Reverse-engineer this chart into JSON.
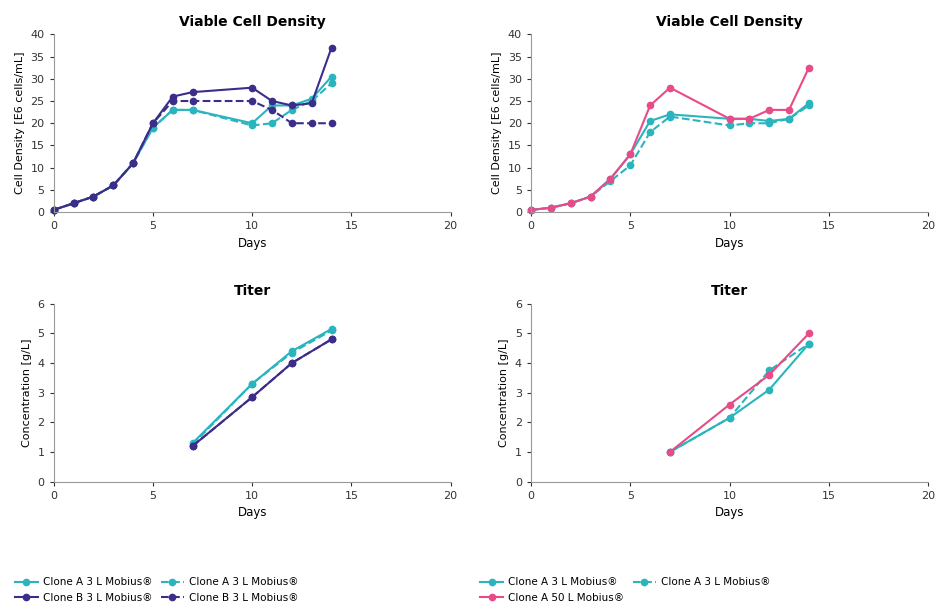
{
  "top_left": {
    "title": "Viable Cell Density",
    "ylabel": "Cell Density [E6 cells/mL]",
    "xlabel": "Days",
    "ylim": [
      0,
      40
    ],
    "xlim": [
      0,
      20
    ],
    "yticks": [
      0,
      5,
      10,
      15,
      20,
      25,
      30,
      35,
      40
    ],
    "xticks": [
      0,
      5,
      10,
      15,
      20
    ],
    "series": [
      {
        "x": [
          0,
          1,
          2,
          3,
          4,
          5,
          6,
          7,
          10,
          11,
          12,
          13,
          14
        ],
        "y": [
          0.5,
          2.0,
          3.5,
          6.0,
          11.0,
          19.0,
          23.0,
          23.0,
          20.0,
          24.0,
          24.0,
          25.5,
          30.5
        ],
        "color": "#2ab5be",
        "linestyle": "solid",
        "marker": "o",
        "markersize": 4.5,
        "linewidth": 1.5
      },
      {
        "x": [
          0,
          1,
          2,
          3,
          4,
          5,
          6,
          7,
          10,
          11,
          12,
          13,
          14
        ],
        "y": [
          0.5,
          2.0,
          3.5,
          6.0,
          11.0,
          19.0,
          23.0,
          23.0,
          19.5,
          20.0,
          23.0,
          25.0,
          29.0
        ],
        "color": "#2ab5be",
        "linestyle": "dashed",
        "marker": "o",
        "markersize": 4.5,
        "linewidth": 1.5
      },
      {
        "x": [
          0,
          1,
          2,
          3,
          4,
          5,
          6,
          7,
          10,
          11,
          12,
          13,
          14
        ],
        "y": [
          0.5,
          2.0,
          3.5,
          6.0,
          11.0,
          20.0,
          26.0,
          27.0,
          28.0,
          25.0,
          24.0,
          24.5,
          37.0
        ],
        "color": "#3d2d8a",
        "linestyle": "solid",
        "marker": "o",
        "markersize": 4.5,
        "linewidth": 1.5
      },
      {
        "x": [
          0,
          1,
          2,
          3,
          4,
          5,
          6,
          7,
          10,
          11,
          12,
          13,
          14
        ],
        "y": [
          0.5,
          2.0,
          3.5,
          6.0,
          11.0,
          20.0,
          25.0,
          25.0,
          25.0,
          23.0,
          20.0,
          20.0,
          20.0
        ],
        "color": "#3d2d8a",
        "linestyle": "dashed",
        "marker": "o",
        "markersize": 4.5,
        "linewidth": 1.5
      }
    ]
  },
  "top_right": {
    "title": "Viable Cell Density",
    "ylabel": "Cell Density [E6 cells/mL]",
    "xlabel": "Days",
    "ylim": [
      0,
      40
    ],
    "xlim": [
      0,
      20
    ],
    "yticks": [
      0,
      5,
      10,
      15,
      20,
      25,
      30,
      35,
      40
    ],
    "xticks": [
      0,
      5,
      10,
      15,
      20
    ],
    "series": [
      {
        "x": [
          0,
          1,
          2,
          3,
          4,
          5,
          6,
          7,
          10,
          11,
          12,
          13,
          14
        ],
        "y": [
          0.5,
          1.0,
          2.0,
          3.5,
          7.5,
          13.0,
          20.5,
          22.0,
          21.0,
          21.0,
          20.5,
          21.0,
          24.5
        ],
        "color": "#2ab5be",
        "linestyle": "solid",
        "marker": "o",
        "markersize": 4.5,
        "linewidth": 1.5
      },
      {
        "x": [
          0,
          1,
          2,
          3,
          4,
          5,
          6,
          7,
          10,
          11,
          12,
          13,
          14
        ],
        "y": [
          0.5,
          1.0,
          2.0,
          3.5,
          7.0,
          10.5,
          18.0,
          21.5,
          19.5,
          20.0,
          20.0,
          21.0,
          24.0
        ],
        "color": "#2ab5be",
        "linestyle": "dashed",
        "marker": "o",
        "markersize": 4.5,
        "linewidth": 1.5
      },
      {
        "x": [
          0,
          1,
          2,
          3,
          4,
          5,
          6,
          7,
          10,
          11,
          12,
          13,
          14
        ],
        "y": [
          0.5,
          1.0,
          2.0,
          3.5,
          7.5,
          13.0,
          24.0,
          28.0,
          21.0,
          21.0,
          23.0,
          23.0,
          32.5
        ],
        "color": "#e84b87",
        "linestyle": "solid",
        "marker": "o",
        "markersize": 4.5,
        "linewidth": 1.5
      }
    ]
  },
  "bottom_left": {
    "title": "Titer",
    "ylabel": "Concentration [g/L]",
    "xlabel": "Days",
    "ylim": [
      0,
      6
    ],
    "xlim": [
      0,
      20
    ],
    "yticks": [
      0,
      1,
      2,
      3,
      4,
      5,
      6
    ],
    "xticks": [
      0,
      5,
      10,
      15,
      20
    ],
    "series": [
      {
        "x": [
          7,
          10,
          12,
          14
        ],
        "y": [
          1.3,
          3.3,
          4.4,
          5.15
        ],
        "color": "#2ab5be",
        "linestyle": "solid",
        "marker": "o",
        "markersize": 4.5,
        "linewidth": 1.5
      },
      {
        "x": [
          7,
          10,
          12,
          14
        ],
        "y": [
          1.25,
          3.3,
          4.35,
          5.1
        ],
        "color": "#2ab5be",
        "linestyle": "dashed",
        "marker": "o",
        "markersize": 4.5,
        "linewidth": 1.5
      },
      {
        "x": [
          7,
          10,
          12,
          14
        ],
        "y": [
          1.2,
          2.85,
          4.0,
          4.8
        ],
        "color": "#3d2d8a",
        "linestyle": "solid",
        "marker": "o",
        "markersize": 4.5,
        "linewidth": 1.5
      },
      {
        "x": [
          7,
          10,
          12,
          14
        ],
        "y": [
          1.2,
          2.85,
          4.0,
          4.8
        ],
        "color": "#3d2d8a",
        "linestyle": "dashed",
        "marker": "o",
        "markersize": 4.5,
        "linewidth": 1.5
      }
    ]
  },
  "bottom_right": {
    "title": "Titer",
    "ylabel": "Concentration [g/L]",
    "xlabel": "Days",
    "ylim": [
      0,
      6
    ],
    "xlim": [
      0,
      20
    ],
    "yticks": [
      0,
      1,
      2,
      3,
      4,
      5,
      6
    ],
    "xticks": [
      0,
      5,
      10,
      15,
      20
    ],
    "series": [
      {
        "x": [
          7,
          10,
          12,
          14
        ],
        "y": [
          1.0,
          2.15,
          3.1,
          4.65
        ],
        "color": "#2ab5be",
        "linestyle": "solid",
        "marker": "o",
        "markersize": 4.5,
        "linewidth": 1.5
      },
      {
        "x": [
          7,
          10,
          12,
          14
        ],
        "y": [
          1.0,
          2.15,
          3.75,
          4.65
        ],
        "color": "#2ab5be",
        "linestyle": "dashed",
        "marker": "o",
        "markersize": 4.5,
        "linewidth": 1.5
      },
      {
        "x": [
          7,
          10,
          12,
          14
        ],
        "y": [
          1.0,
          2.6,
          3.6,
          5.0
        ],
        "color": "#e84b87",
        "linestyle": "solid",
        "marker": "o",
        "markersize": 4.5,
        "linewidth": 1.5
      }
    ]
  },
  "legend_left": [
    {
      "label": "Clone A 3 L Mobius®",
      "color": "#2ab5be",
      "linestyle": "solid"
    },
    {
      "label": "Clone B 3 L Mobius®",
      "color": "#3d2d8a",
      "linestyle": "solid"
    },
    {
      "label": "Clone A 3 L Mobius®",
      "color": "#2ab5be",
      "linestyle": "dashed"
    },
    {
      "label": "Clone B 3 L Mobius®",
      "color": "#3d2d8a",
      "linestyle": "dashed"
    }
  ],
  "legend_right": [
    {
      "label": "Clone A 3 L Mobius®",
      "color": "#2ab5be",
      "linestyle": "solid"
    },
    {
      "label": "Clone A 50 L Mobius®",
      "color": "#e84b87",
      "linestyle": "solid"
    },
    {
      "label": "Clone A 3 L Mobius®",
      "color": "#2ab5be",
      "linestyle": "dashed"
    },
    {
      "label": "",
      "color": "none",
      "linestyle": "solid"
    }
  ],
  "title_fontsize": 10,
  "label_fontsize": 8,
  "tick_fontsize": 8,
  "legend_fontsize": 7.5
}
